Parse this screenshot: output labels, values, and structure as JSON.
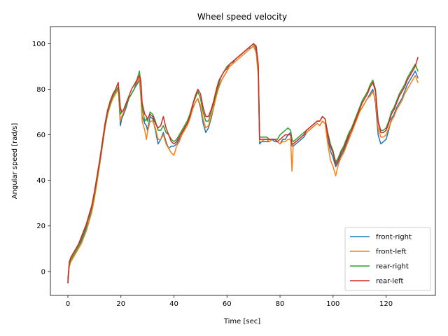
{
  "chart_data": {
    "type": "line",
    "title": "Wheel speed velocity",
    "xlabel": "Time [sec]",
    "ylabel": "Angular speed [rad/s]",
    "xlim": [
      -6.6,
      138.6
    ],
    "ylim": [
      -10.5,
      107.5
    ],
    "xticks": [
      0,
      20,
      40,
      60,
      80,
      100,
      120
    ],
    "yticks": [
      0,
      20,
      40,
      60,
      80,
      100
    ],
    "grid": false,
    "legend_position": "lower-right",
    "series": [
      {
        "name": "front-right",
        "color": "#1f77b4",
        "x": [
          0,
          0.5,
          1,
          2,
          3,
          4,
          5,
          6,
          7,
          8,
          9,
          10,
          11,
          12,
          13,
          14,
          15,
          16,
          17,
          18,
          19,
          19.8,
          20.3,
          21,
          22,
          23,
          24,
          25,
          26,
          27,
          27.5,
          28,
          29,
          29.6,
          30,
          31,
          32,
          33,
          34,
          35,
          36,
          37,
          38,
          39,
          40,
          41,
          42,
          43,
          44,
          45,
          46,
          47,
          48,
          49,
          50,
          51,
          52,
          53,
          54,
          55,
          56,
          57,
          58,
          59,
          60,
          61,
          62,
          63,
          64,
          65,
          66,
          67,
          68,
          69,
          70,
          71,
          71.8,
          72.3,
          73,
          74,
          75,
          76,
          77,
          78,
          79,
          80,
          81,
          82,
          83,
          84,
          84.5,
          85,
          86,
          87,
          88,
          89,
          90,
          91,
          92,
          93,
          94,
          95,
          96,
          97,
          98,
          99,
          100,
          101,
          102,
          103,
          104,
          105,
          106,
          107,
          108,
          109,
          110,
          111,
          112,
          113,
          114,
          115,
          116,
          117,
          118,
          119,
          120,
          121,
          122,
          123,
          124,
          125,
          126,
          127,
          128,
          129,
          130,
          131,
          132
        ],
        "y": [
          -4,
          3,
          5,
          7,
          9,
          11,
          13,
          16,
          19,
          22,
          27,
          33,
          40,
          47,
          55,
          63,
          69,
          73,
          77,
          79,
          81,
          64,
          67,
          69,
          72,
          76,
          78,
          80,
          82,
          84,
          77,
          68,
          65,
          64,
          62,
          68,
          67,
          62,
          56,
          58,
          61,
          57,
          54,
          55,
          55,
          56,
          58,
          60,
          63,
          65,
          68,
          72,
          74,
          76,
          72,
          65,
          61,
          63,
          67,
          72,
          78,
          82,
          84,
          86,
          88,
          90,
          91,
          93,
          94,
          95,
          96,
          97,
          98,
          98,
          99,
          97,
          88,
          56,
          57,
          57,
          57,
          57,
          58,
          57,
          57,
          56,
          58,
          58,
          60,
          61,
          55,
          55,
          56,
          57,
          58,
          59,
          61,
          62,
          63,
          64,
          65,
          64,
          66,
          65,
          58,
          53,
          50,
          46,
          48,
          51,
          53,
          56,
          59,
          61,
          64,
          67,
          70,
          72,
          74,
          76,
          78,
          80,
          74,
          60,
          56,
          57,
          58,
          62,
          67,
          69,
          72,
          74,
          76,
          79,
          82,
          84,
          86,
          88,
          85
        ]
      },
      {
        "name": "front-left",
        "color": "#ff7f0e",
        "x": [
          0,
          0.5,
          1,
          2,
          3,
          4,
          5,
          6,
          7,
          8,
          9,
          10,
          11,
          12,
          13,
          14,
          15,
          16,
          17,
          18,
          19,
          19.8,
          20.3,
          21,
          22,
          23,
          24,
          25,
          26,
          27,
          27.5,
          28,
          29,
          29.6,
          30,
          31,
          32,
          33,
          34,
          35,
          36,
          37,
          38,
          39,
          40,
          41,
          42,
          43,
          44,
          45,
          46,
          47,
          48,
          49,
          50,
          51,
          52,
          53,
          54,
          55,
          56,
          57,
          58,
          59,
          60,
          61,
          62,
          63,
          64,
          65,
          66,
          67,
          68,
          69,
          70,
          71,
          71.8,
          72.3,
          73,
          74,
          75,
          76,
          77,
          78,
          79,
          80,
          81,
          82,
          83,
          84,
          84.5,
          85,
          86,
          87,
          88,
          89,
          90,
          91,
          92,
          93,
          94,
          95,
          96,
          97,
          98,
          99,
          100,
          101,
          102,
          103,
          104,
          105,
          106,
          107,
          108,
          109,
          110,
          111,
          112,
          113,
          114,
          115,
          116,
          117,
          118,
          119,
          120,
          121,
          122,
          123,
          124,
          125,
          126,
          127,
          128,
          129,
          130,
          131,
          132
        ],
        "y": [
          -5,
          2,
          4,
          6,
          8,
          10,
          12,
          15,
          18,
          22,
          26,
          32,
          39,
          47,
          55,
          63,
          69,
          73,
          76,
          78,
          80,
          66,
          68,
          70,
          73,
          76,
          78,
          80,
          83,
          85,
          78,
          66,
          62,
          58,
          61,
          66,
          66,
          63,
          58,
          58,
          60,
          56,
          54,
          52,
          51,
          55,
          57,
          60,
          62,
          64,
          67,
          71,
          74,
          76,
          73,
          67,
          63,
          64,
          68,
          72,
          77,
          81,
          84,
          86,
          88,
          90,
          91,
          92,
          93,
          94,
          95,
          96,
          97,
          98,
          99,
          96,
          86,
          57,
          57,
          58,
          58,
          57,
          58,
          58,
          57,
          56,
          57,
          57,
          58,
          58,
          44,
          56,
          57,
          58,
          59,
          60,
          61,
          62,
          63,
          64,
          65,
          64,
          66,
          65,
          56,
          49,
          46,
          42,
          47,
          50,
          52,
          55,
          58,
          61,
          64,
          67,
          70,
          72,
          74,
          76,
          77,
          79,
          75,
          63,
          59,
          59,
          60,
          63,
          66,
          68,
          71,
          73,
          75,
          78,
          80,
          82,
          84,
          86,
          83
        ]
      },
      {
        "name": "rear-right",
        "color": "#2ca02c",
        "x": [
          0,
          0.5,
          1,
          2,
          3,
          4,
          5,
          6,
          7,
          8,
          9,
          10,
          11,
          12,
          13,
          14,
          15,
          16,
          17,
          18,
          19,
          19.8,
          20.3,
          21,
          22,
          23,
          24,
          25,
          26,
          27,
          27.5,
          28,
          29,
          29.6,
          30,
          31,
          32,
          33,
          34,
          35,
          36,
          37,
          38,
          39,
          40,
          41,
          42,
          43,
          44,
          45,
          46,
          47,
          48,
          49,
          50,
          51,
          52,
          53,
          54,
          55,
          56,
          57,
          58,
          59,
          60,
          61,
          62,
          63,
          64,
          65,
          66,
          67,
          68,
          69,
          70,
          71,
          71.8,
          72.3,
          73,
          74,
          75,
          76,
          77,
          78,
          79,
          80,
          81,
          82,
          83,
          84,
          84.5,
          85,
          86,
          87,
          88,
          89,
          90,
          91,
          92,
          93,
          94,
          95,
          96,
          97,
          98,
          99,
          100,
          101,
          102,
          103,
          104,
          105,
          106,
          107,
          108,
          109,
          110,
          111,
          112,
          113,
          114,
          115,
          116,
          117,
          118,
          119,
          120,
          121,
          122,
          123,
          124,
          125,
          126,
          127,
          128,
          129,
          130,
          131,
          132
        ],
        "y": [
          -3,
          3,
          5,
          7,
          9,
          11,
          14,
          17,
          20,
          24,
          28,
          34,
          41,
          48,
          56,
          64,
          70,
          74,
          77,
          79,
          81,
          69,
          70,
          71,
          73,
          76,
          78,
          80,
          84,
          88,
          82,
          72,
          66,
          67,
          66,
          70,
          69,
          66,
          62,
          62,
          64,
          61,
          60,
          58,
          57,
          58,
          60,
          62,
          64,
          66,
          69,
          73,
          76,
          79,
          76,
          70,
          66,
          66,
          70,
          74,
          79,
          83,
          86,
          88,
          90,
          91,
          92,
          93,
          94,
          95,
          96,
          97,
          98,
          99,
          100,
          98,
          90,
          59,
          59,
          59,
          59,
          58,
          58,
          58,
          58,
          60,
          61,
          62,
          63,
          62,
          58,
          57,
          58,
          59,
          60,
          61,
          62,
          63,
          64,
          65,
          66,
          66,
          68,
          67,
          61,
          56,
          53,
          48,
          50,
          53,
          55,
          58,
          61,
          63,
          66,
          69,
          72,
          75,
          77,
          79,
          82,
          84,
          80,
          66,
          62,
          62,
          63,
          66,
          70,
          72,
          75,
          78,
          80,
          82,
          85,
          87,
          89,
          91,
          88
        ]
      },
      {
        "name": "rear-left",
        "color": "#d62728",
        "x": [
          0,
          0.5,
          1,
          2,
          3,
          4,
          5,
          6,
          7,
          8,
          9,
          10,
          11,
          12,
          13,
          14,
          15,
          16,
          17,
          18,
          19,
          19.8,
          20.3,
          21,
          22,
          23,
          24,
          25,
          26,
          27,
          27.5,
          28,
          29,
          29.6,
          30,
          31,
          32,
          33,
          34,
          35,
          36,
          37,
          38,
          39,
          40,
          41,
          42,
          43,
          44,
          45,
          46,
          47,
          48,
          49,
          50,
          51,
          52,
          53,
          54,
          55,
          56,
          57,
          58,
          59,
          60,
          61,
          62,
          63,
          64,
          65,
          66,
          67,
          68,
          69,
          70,
          71,
          71.8,
          72.3,
          73,
          74,
          75,
          76,
          77,
          78,
          79,
          80,
          81,
          82,
          83,
          84,
          84.5,
          85,
          86,
          87,
          88,
          89,
          90,
          91,
          92,
          93,
          94,
          95,
          96,
          97,
          98,
          99,
          100,
          101,
          102,
          103,
          104,
          105,
          106,
          107,
          108,
          109,
          110,
          111,
          112,
          113,
          114,
          115,
          116,
          117,
          118,
          119,
          120,
          121,
          122,
          123,
          124,
          125,
          126,
          127,
          128,
          129,
          130,
          131,
          132
        ],
        "y": [
          -5,
          4,
          6,
          8,
          10,
          12,
          15,
          18,
          21,
          25,
          29,
          35,
          42,
          49,
          57,
          65,
          71,
          75,
          78,
          80,
          83,
          72,
          70,
          71,
          74,
          77,
          80,
          82,
          84,
          86,
          84,
          74,
          69,
          68,
          67,
          69,
          68,
          65,
          63,
          64,
          68,
          63,
          60,
          57,
          56,
          57,
          59,
          61,
          63,
          65,
          68,
          73,
          77,
          80,
          78,
          72,
          68,
          68,
          71,
          75,
          80,
          84,
          86,
          88,
          89,
          91,
          92,
          93,
          94,
          95,
          96,
          97,
          98,
          99,
          100,
          99,
          91,
          58,
          58,
          58,
          58,
          58,
          58,
          58,
          57,
          58,
          59,
          60,
          60,
          60,
          56,
          56,
          57,
          58,
          59,
          60,
          62,
          63,
          64,
          65,
          66,
          66,
          68,
          67,
          60,
          55,
          52,
          47,
          49,
          52,
          54,
          57,
          60,
          62,
          65,
          68,
          71,
          74,
          76,
          78,
          81,
          83,
          79,
          66,
          61,
          61,
          62,
          65,
          69,
          71,
          74,
          77,
          79,
          81,
          84,
          86,
          88,
          90,
          94
        ]
      }
    ]
  }
}
